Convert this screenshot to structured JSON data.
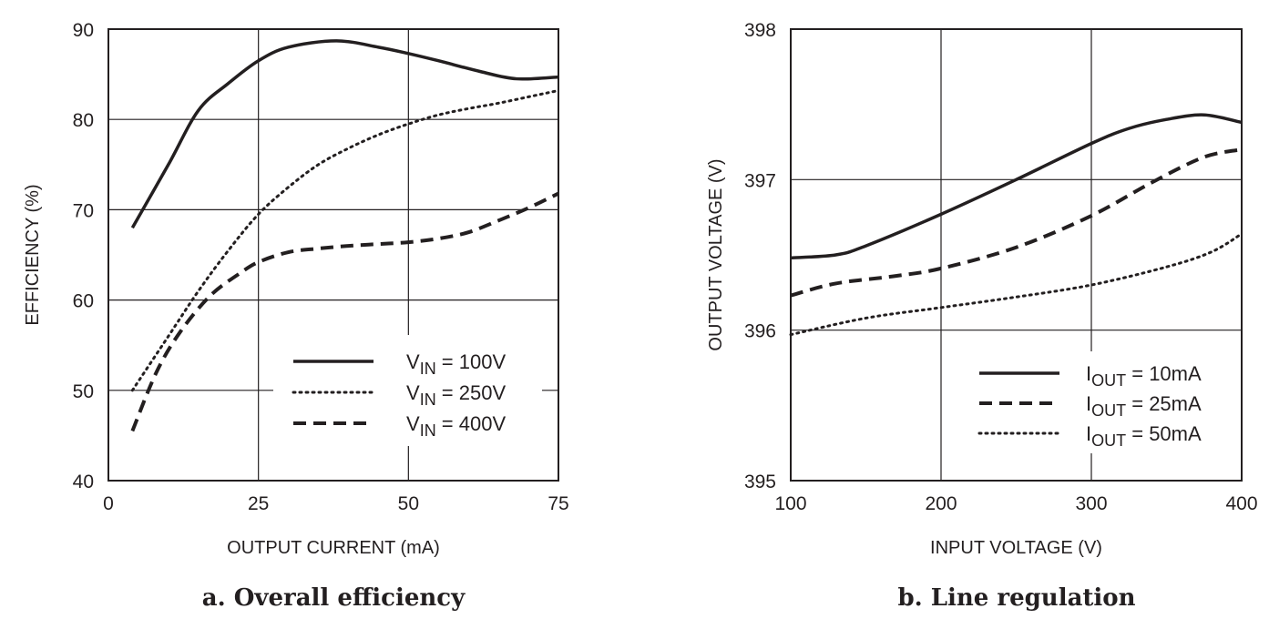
{
  "chart_data": [
    {
      "type": "line",
      "caption": "a. Overall efficiency",
      "xlabel": "OUTPUT CURRENT (mA)",
      "ylabel": "EFFICIENCY (%)",
      "xlim": [
        0,
        75
      ],
      "ylim": [
        40,
        90
      ],
      "xticks": [
        0,
        25,
        50,
        75
      ],
      "yticks": [
        40,
        50,
        60,
        70,
        80,
        90
      ],
      "grid": true,
      "legend_position": "bottom-right",
      "series": [
        {
          "name": "VIN = 100V",
          "label_main": "V",
          "label_sub": "IN",
          "label_rest": " = 100V",
          "style": "solid",
          "x": [
            4,
            10,
            15,
            20,
            25,
            30,
            38,
            45,
            50,
            55,
            62,
            68,
            75
          ],
          "y": [
            68,
            75,
            81,
            84,
            86.5,
            88,
            88.7,
            88,
            87.3,
            86.5,
            85.3,
            84.5,
            84.7
          ]
        },
        {
          "name": "VIN = 250V",
          "label_main": "V",
          "label_sub": "IN",
          "label_rest": " = 250V",
          "style": "dotted",
          "x": [
            4,
            10,
            15,
            20,
            25,
            30,
            35,
            40,
            45,
            50,
            55,
            60,
            65,
            70,
            75
          ],
          "y": [
            50,
            56,
            61,
            65.5,
            69.5,
            72.5,
            75,
            76.8,
            78.3,
            79.5,
            80.5,
            81.2,
            81.8,
            82.5,
            83.2
          ]
        },
        {
          "name": "VIN = 400V",
          "label_main": "V",
          "label_sub": "IN",
          "label_rest": " = 400V",
          "style": "dashed",
          "x": [
            4,
            8,
            12,
            17,
            22,
            25,
            30,
            35,
            40,
            45,
            50,
            55,
            60,
            65,
            70,
            75
          ],
          "y": [
            45.5,
            52,
            56.5,
            60.5,
            63,
            64.2,
            65.3,
            65.7,
            66,
            66.2,
            66.4,
            66.8,
            67.5,
            68.8,
            70.2,
            71.8
          ]
        }
      ]
    },
    {
      "type": "line",
      "caption": "b. Line regulation",
      "xlabel": "INPUT VOLTAGE (V)",
      "ylabel": "OUTPUT VOLTAGE (V)",
      "xlim": [
        100,
        400
      ],
      "ylim": [
        395,
        398
      ],
      "xticks": [
        100,
        200,
        300,
        400
      ],
      "yticks": [
        395,
        396,
        397,
        398
      ],
      "grid": true,
      "legend_position": "bottom-right",
      "series": [
        {
          "name": "IOUT = 10mA",
          "label_main": "I",
          "label_sub": "OUT",
          "label_rest": " = 10mA",
          "style": "solid",
          "x": [
            100,
            130,
            150,
            200,
            250,
            300,
            325,
            350,
            375,
            400
          ],
          "y": [
            396.48,
            396.5,
            396.56,
            396.77,
            397.0,
            397.24,
            397.34,
            397.4,
            397.43,
            397.38
          ]
        },
        {
          "name": "IOUT = 25mA",
          "label_main": "I",
          "label_sub": "OUT",
          "label_rest": " = 25mA",
          "style": "dashed",
          "x": [
            100,
            130,
            170,
            200,
            250,
            300,
            340,
            375,
            400
          ],
          "y": [
            396.23,
            396.31,
            396.36,
            396.41,
            396.55,
            396.76,
            396.98,
            397.15,
            397.2
          ]
        },
        {
          "name": "IOUT = 50mA",
          "label_main": "I",
          "label_sub": "OUT",
          "label_rest": " = 50mA",
          "style": "dotted",
          "x": [
            100,
            150,
            200,
            250,
            300,
            350,
            380,
            400
          ],
          "y": [
            395.97,
            396.08,
            396.15,
            396.22,
            396.3,
            396.42,
            396.52,
            396.64
          ]
        }
      ]
    }
  ],
  "colors": {
    "ink": "#231f20",
    "grid": "#231f20",
    "background": "#ffffff"
  }
}
